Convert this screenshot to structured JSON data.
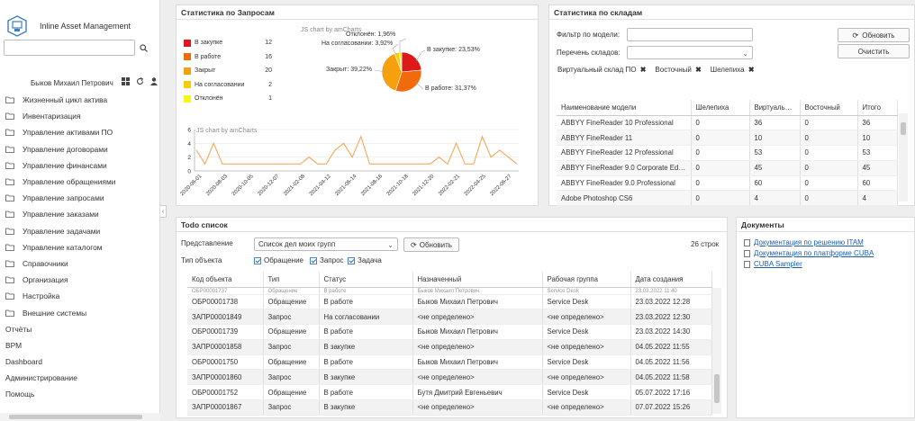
{
  "app": {
    "title": "Inline Asset Management",
    "username": "Быков Михаил Петрович"
  },
  "sidebar": {
    "items": [
      {
        "label": "Жизненный цикл актива"
      },
      {
        "label": "Инвентаризация"
      },
      {
        "label": "Управление активами ПО"
      },
      {
        "label": "Управление договорами"
      },
      {
        "label": "Управление финансами"
      },
      {
        "label": "Управление обращениями"
      },
      {
        "label": "Управление запросами"
      },
      {
        "label": "Управление заказами"
      },
      {
        "label": "Управление задачами"
      },
      {
        "label": "Управление каталогом"
      },
      {
        "label": "Справочники"
      },
      {
        "label": "Организация"
      },
      {
        "label": "Настройка"
      },
      {
        "label": "Внешние системы"
      }
    ],
    "top_items": [
      {
        "label": "Отчёты"
      },
      {
        "label": "BPM"
      },
      {
        "label": "Dashboard"
      },
      {
        "label": "Администрирование"
      },
      {
        "label": "Помощь"
      }
    ]
  },
  "requests_panel": {
    "title": "Статистика по Запросам",
    "pie_credit": "JS chart by amCharts",
    "line_credit": "JS chart by amCharts",
    "pie_labels": {
      "rejected": "Отклонён: 1,96%",
      "approval": "На согласовании: 3,92%",
      "purchase": "В закупке: 23,53%",
      "closed": "Закрыт: 39,22%",
      "inwork": "В работе: 31,37%"
    }
  },
  "chart_data": [
    {
      "type": "pie",
      "categories": [
        "В закупке",
        "В работе",
        "Закрыт",
        "На согласовании",
        "Отклонён"
      ],
      "values": [
        12,
        16,
        20,
        2,
        1
      ],
      "percent_labels": [
        "23,53%",
        "31,37%",
        "39,22%",
        "3,92%",
        "1,96%"
      ],
      "colors": [
        "#dd1a1a",
        "#f16a0c",
        "#f5a10e",
        "#f7cb0e",
        "#f7f31c"
      ],
      "legend": "left"
    },
    {
      "type": "line",
      "x_ticks": [
        "2020-06-01",
        "2020-08-03",
        "2020-10-05",
        "2020-12-07",
        "2021-02-08",
        "2021-04-12",
        "2021-06-14",
        "2021-08-16",
        "2021-10-18",
        "2021-12-20",
        "2022-02-21",
        "2022-04-25",
        "2022-06-27"
      ],
      "tick_labels_shown": [
        "2020-06-01",
        "2020-08-03",
        "2020-10-05",
        "2020-12-07",
        "2021-02-08",
        "2021-04-12",
        "2021-06-14",
        "2021-08-16",
        "2021-10-18",
        "2021-12-20",
        "2022-02-21",
        "2022-04-25",
        "2022-06-27"
      ],
      "values": [
        3,
        1,
        4,
        1,
        1,
        1,
        1,
        1,
        1,
        1,
        1,
        1,
        1,
        2,
        1,
        1,
        3,
        4,
        2,
        5,
        1,
        1,
        1,
        1,
        1,
        1,
        1,
        1,
        2,
        1,
        4,
        1,
        1,
        5,
        2,
        3,
        2,
        1
      ],
      "ylim": [
        0,
        6
      ],
      "y_ticks": [
        0,
        2,
        4,
        6
      ],
      "y_tick_labels": [
        "0",
        "2",
        "4",
        "6"
      ],
      "color": "#f5a14a",
      "grid": true
    }
  ],
  "warehouse_panel": {
    "title": "Статистика по складам",
    "model_filter_label": "Фильтр по модели:",
    "model_filter_value": "",
    "warehouses_label": "Перечень складов:",
    "warehouses_value": "",
    "refresh_label": "Обновить",
    "clear_label": "Очистить",
    "tags": [
      "Виртуальный склад ПО",
      "Восточный",
      "Шелепиха"
    ],
    "columns": [
      "Наименование модели",
      "Шелепиха",
      "Виртуальный ск",
      "Восточный",
      "Итого"
    ],
    "rows": [
      [
        "ABBYY FineReader 10 Professional",
        "0",
        "36",
        "0",
        "36"
      ],
      [
        "ABBYY FineReader 11",
        "0",
        "10",
        "0",
        "10"
      ],
      [
        "ABBYY FineReader 12 Professional",
        "0",
        "53",
        "0",
        "53"
      ],
      [
        "ABBYY FineReader 9.0 Corporate Edition",
        "0",
        "45",
        "0",
        "45"
      ],
      [
        "ABBYY FineReader 9.0 Professional",
        "0",
        "60",
        "0",
        "60"
      ],
      [
        "Adobe Photoshop CS6",
        "0",
        "4",
        "0",
        "4"
      ]
    ]
  },
  "todo_panel": {
    "title": "Todo список",
    "view_label": "Представление",
    "view_value": "Список дел моих групп",
    "refresh_label": "Обновить",
    "count": "26 строк",
    "object_type_label": "Тип объекта",
    "filters": [
      "Обращение",
      "Запрос",
      "Задача"
    ],
    "columns": [
      "Код объекта",
      "Тип",
      "Статус",
      "Назначенный",
      "Рабочая группа",
      "Дата создания"
    ],
    "partial_row": [
      "ОБР00001737",
      "Обращение",
      "В работе",
      "Быков Михаил Петрович",
      "Service Desk",
      "23.03.2022 11:40"
    ],
    "rows": [
      [
        "ОБР00001738",
        "Обращение",
        "В работе",
        "Быков Михаил Петрович",
        "Service Desk",
        "23.03.2022 12:28"
      ],
      [
        "ЗАПР00001849",
        "Запрос",
        "На согласовании",
        "<не определено>",
        "<не определено>",
        "23.03.2022 12:30"
      ],
      [
        "ОБР00001739",
        "Обращение",
        "В работе",
        "Быков Михаил Петрович",
        "Service Desk",
        "23.03.2022 14:30"
      ],
      [
        "ЗАПР00001858",
        "Запрос",
        "В закупке",
        "<не определено>",
        "<не определено>",
        "04.05.2022 11:55"
      ],
      [
        "ОБР00001750",
        "Обращение",
        "В работе",
        "Быков Михаил Петрович",
        "Service Desk",
        "04.05.2022 11:56"
      ],
      [
        "ЗАПР00001860",
        "Запрос",
        "В закупке",
        "<не определено>",
        "<не определено>",
        "04.05.2022 11:58"
      ],
      [
        "ОБР00001752",
        "Обращение",
        "В работе",
        "Бутя Дмитрий Евгеньевич",
        "Service Desk",
        "05.07.2022 17:16"
      ],
      [
        "ЗАПР00001867",
        "Запрос",
        "В закупке",
        "<не определено>",
        "<не определено>",
        "07.07.2022 15:26"
      ]
    ]
  },
  "documents_panel": {
    "title": "Документы",
    "links": [
      "Документация по решению ITAM",
      "Документация по платформе CUBA",
      "CUBA Sampler"
    ]
  }
}
